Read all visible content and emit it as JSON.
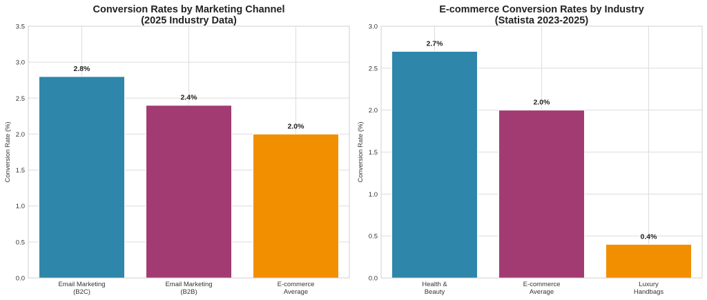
{
  "chart_data": [
    {
      "type": "bar",
      "title": [
        "Conversion Rates by Marketing Channel",
        "(2025 Industry Data)"
      ],
      "ylabel": "Conversion Rate (%)",
      "xlabel": "",
      "categories": [
        [
          "Email Marketing",
          "(B2C)"
        ],
        [
          "Email Marketing",
          "(B2B)"
        ],
        [
          "E-commerce",
          "Average"
        ]
      ],
      "values": [
        2.8,
        2.4,
        2.0
      ],
      "data_labels": [
        "2.8%",
        "2.4%",
        "2.0%"
      ],
      "colors": [
        "#2e86ab",
        "#a23b72",
        "#f18f01"
      ],
      "ylim": [
        0,
        3.5
      ],
      "yticks": [
        "0.0",
        "0.5",
        "1.0",
        "1.5",
        "2.0",
        "2.5",
        "3.0",
        "3.5"
      ],
      "grid": true
    },
    {
      "type": "bar",
      "title": [
        "E-commerce Conversion Rates by Industry",
        "(Statista 2023-2025)"
      ],
      "ylabel": "Conversion Rate (%)",
      "xlabel": "",
      "categories": [
        [
          "Health &",
          "Beauty"
        ],
        [
          "E-commerce",
          "Average"
        ],
        [
          "Luxury",
          "Handbags"
        ]
      ],
      "values": [
        2.7,
        2.0,
        0.4
      ],
      "data_labels": [
        "2.7%",
        "2.0%",
        "0.4%"
      ],
      "colors": [
        "#2e86ab",
        "#a23b72",
        "#f18f01"
      ],
      "ylim": [
        0,
        3.0
      ],
      "yticks": [
        "0.0",
        "0.5",
        "1.0",
        "1.5",
        "2.0",
        "2.5",
        "3.0"
      ],
      "grid": true
    }
  ]
}
